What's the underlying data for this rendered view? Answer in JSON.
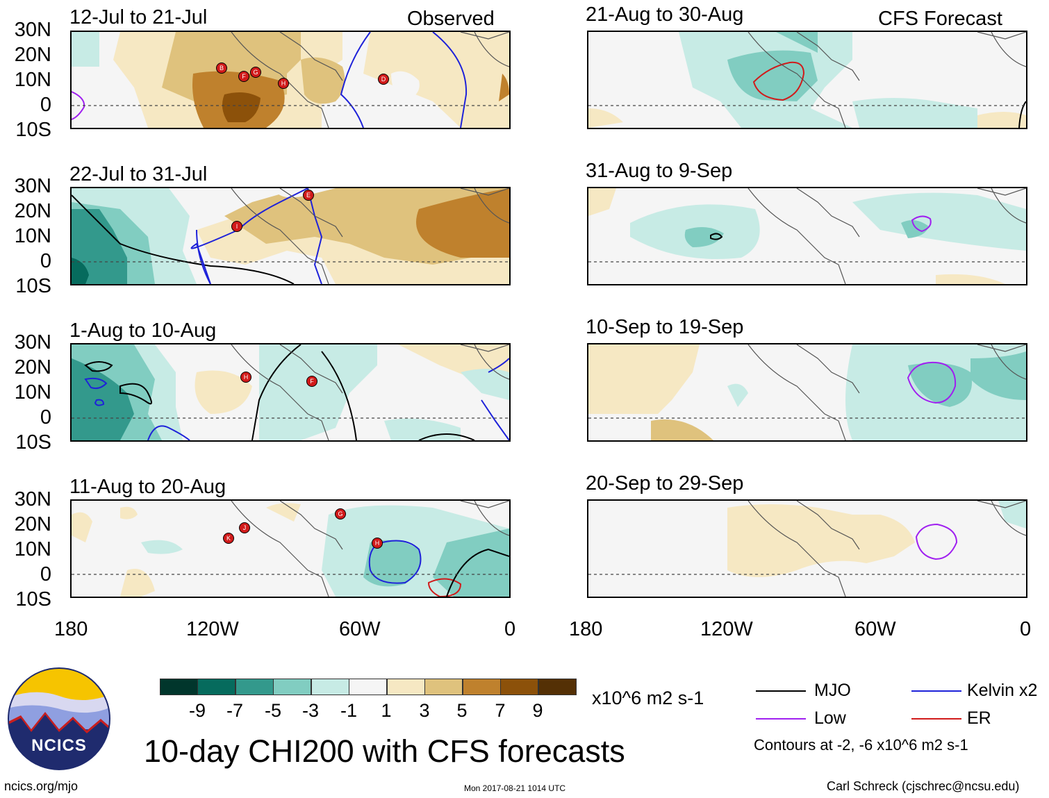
{
  "panels": {
    "obs": [
      {
        "title": "12-Jul to 21-Jul",
        "tag": "Observed"
      },
      {
        "title": "22-Jul to 31-Jul"
      },
      {
        "title": "1-Aug to 10-Aug"
      },
      {
        "title": "11-Aug to 20-Aug"
      }
    ],
    "fcst": [
      {
        "title": "21-Aug to 30-Aug",
        "tag": "CFS Forecast"
      },
      {
        "title": "31-Aug to 9-Sep"
      },
      {
        "title": "10-Sep to 19-Sep"
      },
      {
        "title": "20-Sep to 29-Sep"
      }
    ]
  },
  "yaxis": [
    "30N",
    "20N",
    "10N",
    "0",
    "10S"
  ],
  "xaxis": [
    "180",
    "120W",
    "60W",
    "0"
  ],
  "colorbar": {
    "colors": [
      "#01362c",
      "#066b5d",
      "#33998c",
      "#81cdc1",
      "#c7ebe5",
      "#f5f5f5",
      "#f6e8c3",
      "#dfc27d",
      "#bf812d",
      "#8c510a",
      "#543005"
    ],
    "ticks": [
      "-9",
      "-7",
      "-5",
      "-3",
      "-1",
      "1",
      "3",
      "5",
      "7",
      "9"
    ],
    "units": "x10^6 m2 s-1"
  },
  "legend": {
    "mjo": {
      "label": "MJO",
      "color": "#000000"
    },
    "kelvin": {
      "label": "Kelvin x2",
      "color": "#1e22d9"
    },
    "low": {
      "label": "Low",
      "color": "#a020f0"
    },
    "er": {
      "label": "ER",
      "color": "#d11a1a"
    },
    "contours_note": "Contours at -2, -6 x10^6 m2 s-1"
  },
  "storms": {
    "p1": [
      "B",
      "F",
      "G",
      "H",
      "D"
    ],
    "p2": [
      "E",
      "I"
    ],
    "p3": [
      "H",
      "F"
    ],
    "p4": [
      "K",
      "J",
      "G",
      "H"
    ]
  },
  "footer": {
    "title": "10-day CHI200 with CFS forecasts",
    "site": "ncics.org/mjo",
    "timestamp": "Mon 2017-08-21 1014 UTC",
    "author": "Carl Schreck (cjschrec@ncsu.edu)",
    "logo_text": "NCICS"
  }
}
